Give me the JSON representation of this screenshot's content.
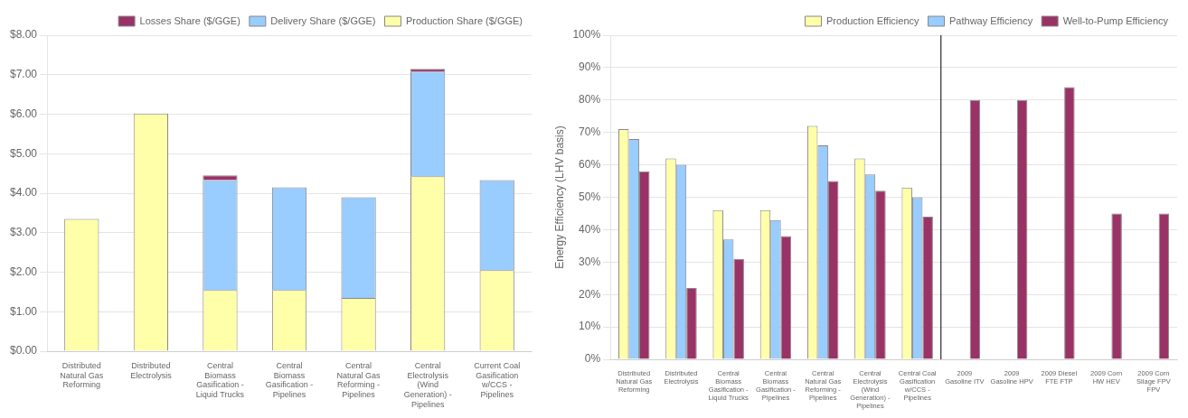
{
  "chart_data": [
    {
      "type": "bar",
      "stacked": true,
      "grid": true,
      "legend": "upper right",
      "categories": [
        "Distributed\nNatural Gas\nReforming",
        "Distributed\nElectrolysis",
        "Central\nBiomass\nGasification -\nLiquid Trucks",
        "Central\nBiomass\nGasification -\nPipelines",
        "Central\nNatural Gas\nReforming -\nPipelines",
        "Central\nElectrolysis\n(Wind\nGeneration) -\nPipelines",
        "Current Coal\nGasification\nw/CCS -\nPipelines"
      ],
      "series": [
        {
          "name": "Production Share ($/GGE)",
          "color": "#FFFFAA",
          "values": [
            3.35,
            6.02,
            1.55,
            1.55,
            1.35,
            4.43,
            2.05
          ]
        },
        {
          "name": "Delivery Share ($/GGE)",
          "color": "#99CCFF",
          "values": [
            0.0,
            0.0,
            2.78,
            2.6,
            2.55,
            2.65,
            2.28
          ]
        },
        {
          "name": "Losses Share ($/GGE)",
          "color": "#993366",
          "values": [
            0.0,
            0.0,
            0.12,
            0.0,
            0.0,
            0.07,
            0.0
          ]
        }
      ],
      "ylim": [
        0.0,
        8.0
      ],
      "yticks": [
        {
          "value": 0.0,
          "label": "$0.00"
        },
        {
          "value": 1.0,
          "label": "$1.00"
        },
        {
          "value": 2.0,
          "label": "$2.00"
        },
        {
          "value": 3.0,
          "label": "$3.00"
        },
        {
          "value": 4.0,
          "label": "$4.00"
        },
        {
          "value": 5.0,
          "label": "$5.00"
        },
        {
          "value": 6.0,
          "label": "$6.00"
        },
        {
          "value": 7.0,
          "label": "$7.00"
        },
        {
          "value": 8.0,
          "label": "$8.00"
        }
      ]
    },
    {
      "type": "bar",
      "grid": true,
      "legend": "upper right",
      "y_label": "Energy Efficiency (LHV basis)",
      "categories": [
        "Distributed\nNatural Gas\nReforming",
        "Distributed\nElectrolysis",
        "Central\nBiomass\nGasification -\nLiquid Trucks",
        "Central\nBiomass\nGasification -\nPipelines",
        "Central\nNatural Gas\nReforming -\nPipelines",
        "Central\nElectrolysis\n(Wind\nGeneration) -\nPipelines",
        "Central Coal\nGasification\nw/CCS -\nPipelines",
        "2009\nGasoline ITV",
        "2009\nGasoline HPV",
        "2009 Diesel\nFTE FTP",
        "2009 Corn\nHW HEV",
        "2009 Corn\nSilage FPV\nFPV"
      ],
      "series": [
        {
          "name": "Production Efficiency",
          "color": "#FFFFAA",
          "values": [
            71,
            62,
            46,
            46,
            72,
            62,
            53,
            null,
            null,
            null,
            null,
            null
          ]
        },
        {
          "name": "Pathway Efficiency",
          "color": "#99CCFF",
          "values": [
            68,
            60,
            37,
            43,
            66,
            57,
            50,
            null,
            null,
            null,
            null,
            null
          ]
        },
        {
          "name": "Well-to-Pump Efficiency",
          "color": "#993366",
          "values": [
            58,
            22,
            31,
            38,
            55,
            52,
            44,
            80,
            80,
            84,
            45,
            45
          ]
        }
      ],
      "ylim": [
        0,
        100
      ],
      "yticks": [
        {
          "value": 0,
          "label": "0%"
        },
        {
          "value": 10,
          "label": "10%"
        },
        {
          "value": 20,
          "label": "20%"
        },
        {
          "value": 30,
          "label": "30%"
        },
        {
          "value": 40,
          "label": "40%"
        },
        {
          "value": 50,
          "label": "50%"
        },
        {
          "value": 60,
          "label": "60%"
        },
        {
          "value": 70,
          "label": "70%"
        },
        {
          "value": 80,
          "label": "80%"
        },
        {
          "value": 90,
          "label": "90%"
        },
        {
          "value": 100,
          "label": "100%"
        }
      ]
    }
  ]
}
